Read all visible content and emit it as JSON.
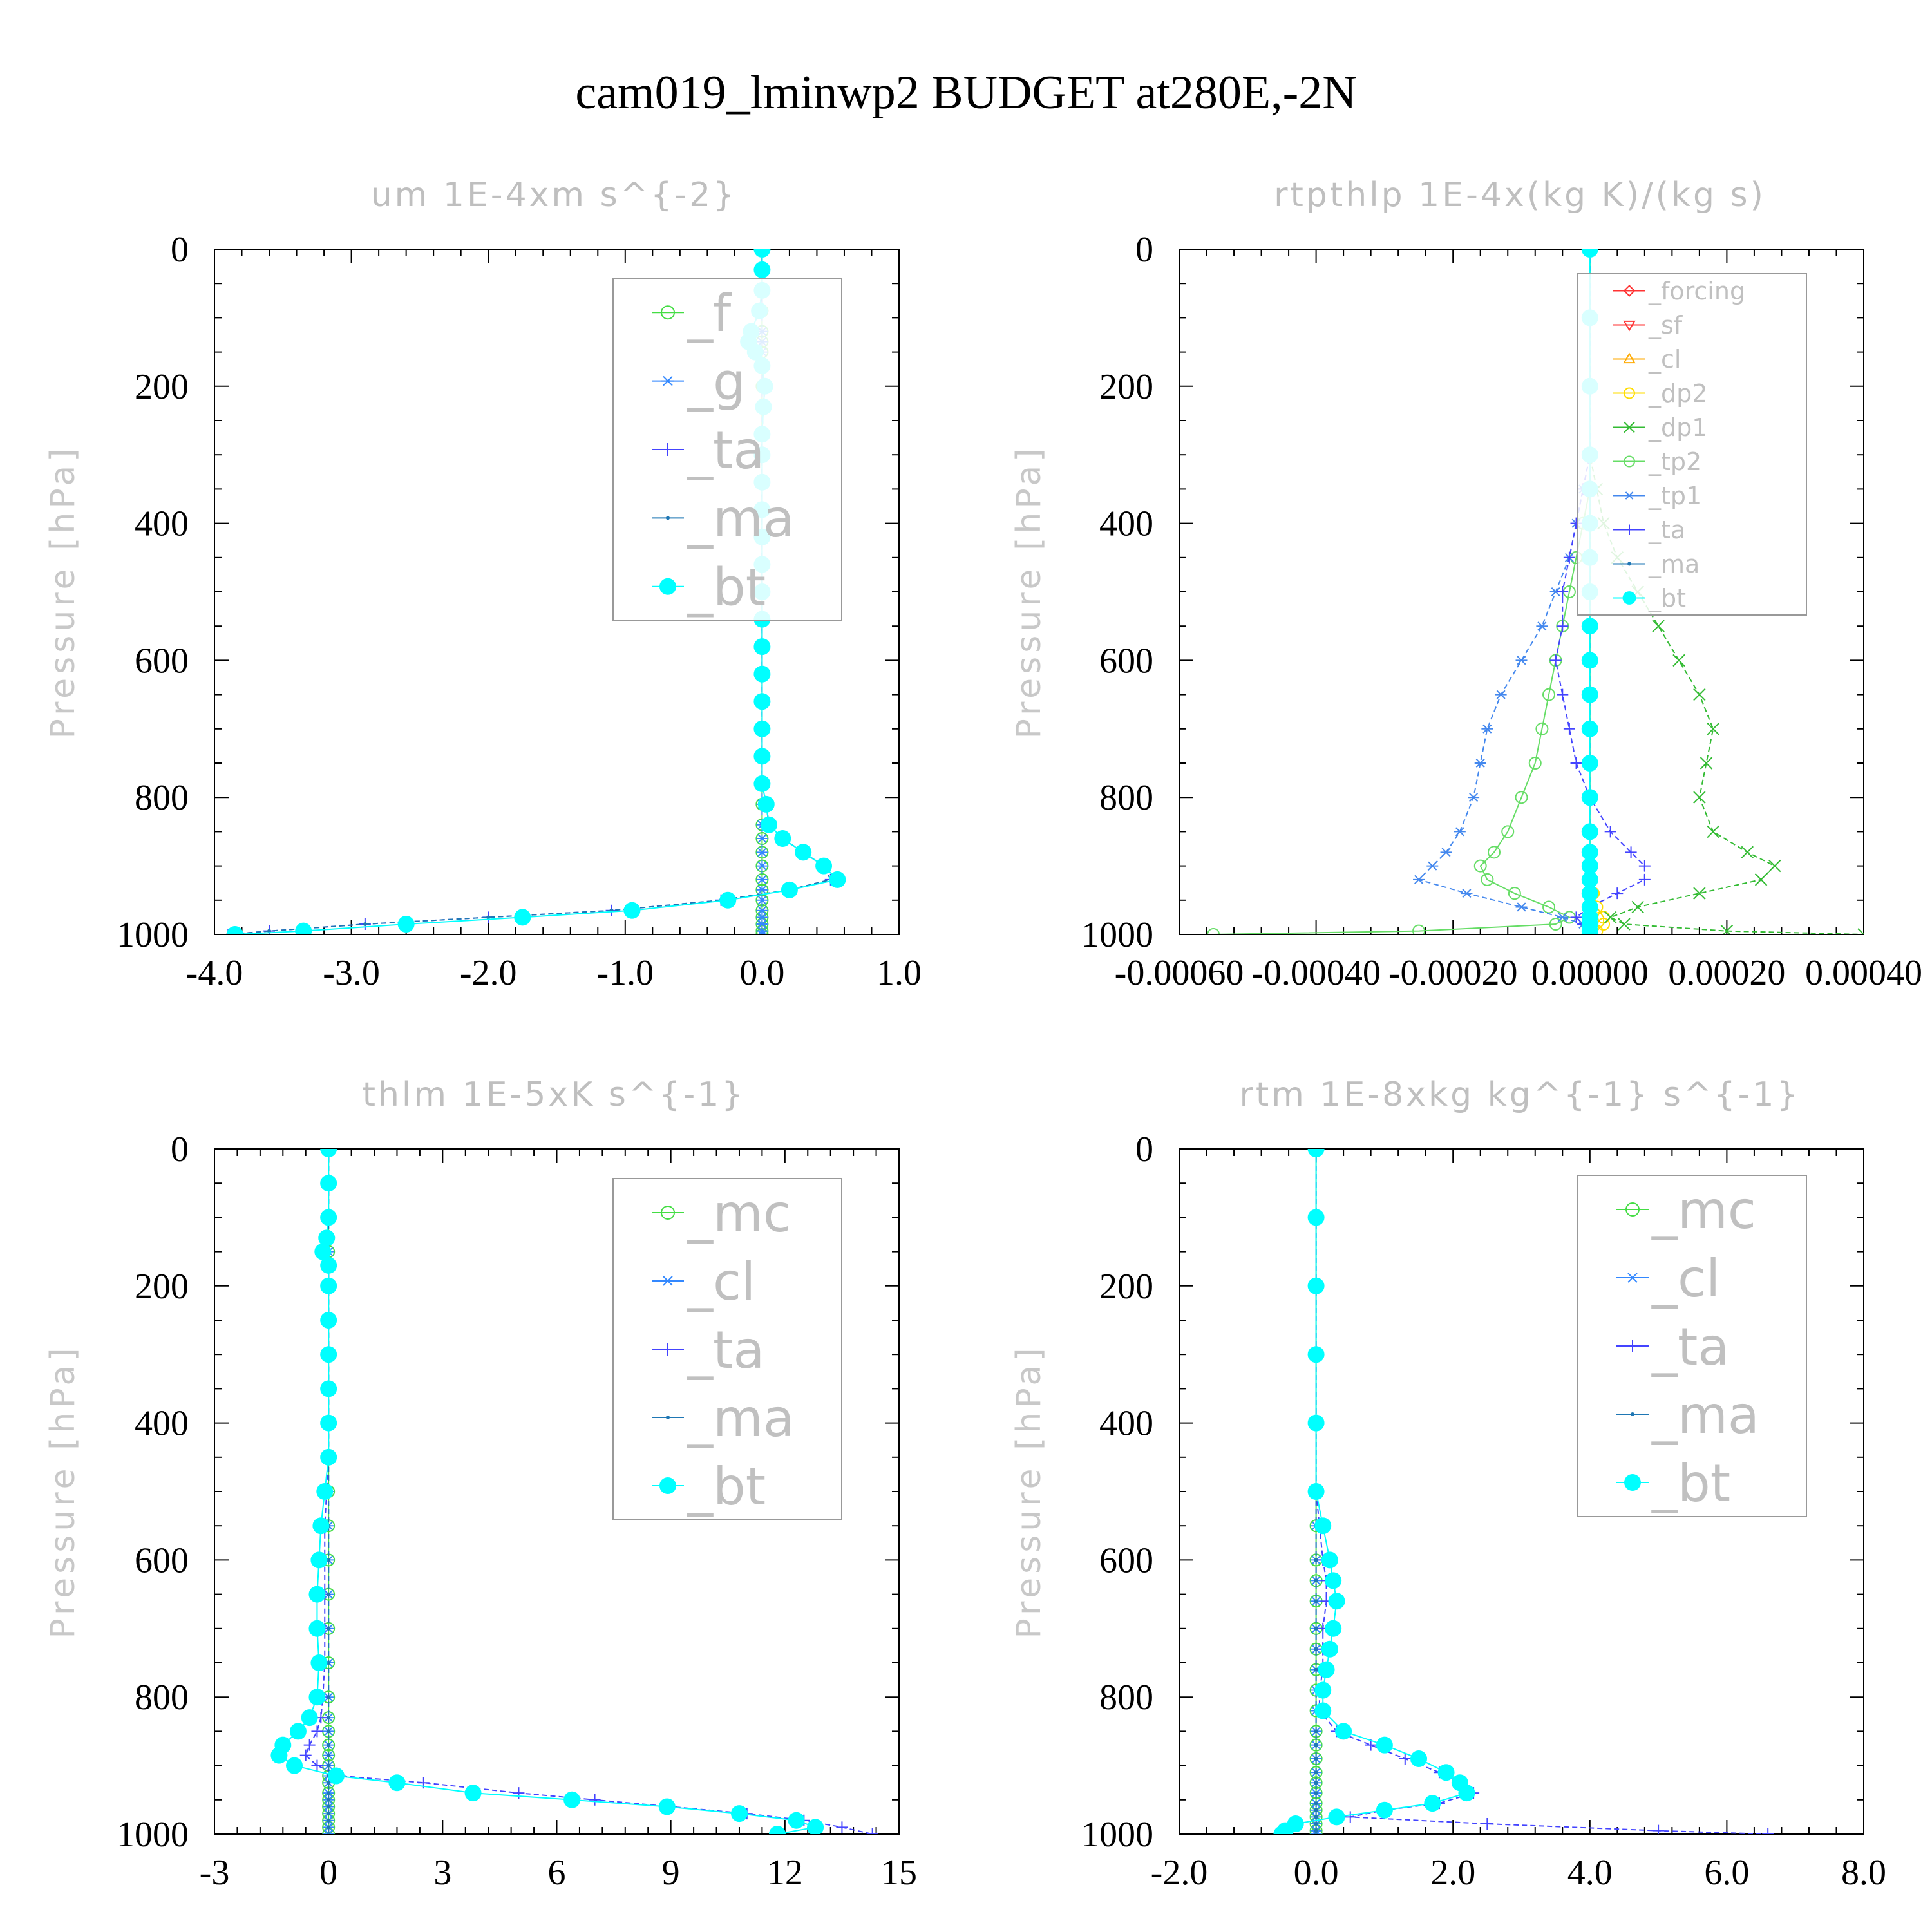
{
  "figure": {
    "title": "cam019_lminwp2  BUDGET at280E,-2N"
  },
  "colors": {
    "f": "#44dd44",
    "g": "#3388ff",
    "ta": "#4444ff",
    "ma": "#1f77b4",
    "bt": "#00ffff",
    "forcing": "#ff3333",
    "sf": "#ff3333",
    "cl_o": "#ffaa00",
    "dp2": "#ffdd00",
    "dp1": "#33bb33",
    "tp2": "#66dd66",
    "tp1": "#4488ee"
  },
  "chart_data": [
    {
      "type": "line",
      "title": "um  1E-4xm s^{-2}",
      "ylabel": "Pressure [hPa]",
      "xlim": [
        -4.0,
        1.0
      ],
      "ylim": [
        1000,
        0
      ],
      "xticks": [
        "-4.0",
        "-3.0",
        "-2.0",
        "-1.0",
        "0.0",
        "1.0"
      ],
      "xtick_values": [
        -4,
        -3,
        -2,
        -1,
        0,
        1
      ],
      "yticks": [
        "0",
        "200",
        "400",
        "600",
        "800",
        "1000"
      ],
      "ytick_values": [
        0,
        200,
        400,
        600,
        800,
        1000
      ],
      "legend_position": "top-right",
      "y": [
        0,
        30,
        60,
        90,
        120,
        135,
        150,
        170,
        200,
        230,
        270,
        300,
        340,
        380,
        420,
        460,
        500,
        540,
        580,
        620,
        660,
        700,
        740,
        780,
        810,
        840,
        860,
        880,
        900,
        920,
        935,
        950,
        965,
        975,
        985,
        995,
        1000
      ],
      "series": [
        {
          "name": "_f",
          "key": "f",
          "marker": "circle",
          "values": [
            0,
            0,
            0,
            0,
            0,
            0,
            0,
            0,
            0,
            0,
            0,
            0,
            0,
            0,
            0,
            0,
            0,
            0,
            0,
            0,
            0,
            0,
            0,
            0,
            0,
            0,
            0,
            0,
            0,
            0,
            0,
            0,
            0,
            0,
            0,
            0,
            0
          ]
        },
        {
          "name": "_g",
          "key": "g",
          "marker": "asterisk",
          "values": [
            0,
            0,
            0,
            0,
            0,
            0,
            0,
            0,
            0,
            0,
            0,
            0,
            0,
            0,
            0,
            0,
            0,
            0,
            0,
            0,
            0,
            0,
            0,
            0,
            0,
            0,
            0,
            0,
            0,
            0,
            0,
            0,
            0,
            0,
            0,
            0,
            0
          ]
        },
        {
          "name": "_ta",
          "key": "ta",
          "marker": "plus",
          "values": [
            0,
            0,
            0,
            -0.02,
            -0.08,
            -0.1,
            -0.05,
            0,
            0.02,
            0.01,
            0,
            0,
            0,
            0,
            0,
            0,
            0,
            0,
            0,
            0,
            0,
            0,
            0,
            0,
            0.03,
            0.05,
            0.15,
            0.3,
            0.45,
            0.5,
            0.2,
            -0.3,
            -1.1,
            -2.0,
            -2.9,
            -3.6,
            -3.9
          ]
        },
        {
          "name": "_ma",
          "key": "ma",
          "marker": "dot",
          "values": [
            0,
            0,
            0,
            -0.02,
            -0.08,
            -0.1,
            -0.05,
            0,
            0.02,
            0.01,
            0,
            0,
            0,
            0,
            0,
            0,
            0,
            0,
            0,
            0,
            0,
            0,
            0,
            0,
            0.03,
            0.05,
            0.15,
            0.3,
            0.45,
            0.5,
            0.2,
            -0.3,
            -1.1,
            -2.0,
            -2.9,
            -3.6,
            -3.9
          ]
        },
        {
          "name": "_bt",
          "key": "bt",
          "marker": "filled",
          "values": [
            0,
            0,
            0,
            -0.02,
            -0.08,
            -0.1,
            -0.05,
            0,
            0.02,
            0.01,
            0,
            0,
            0,
            0,
            0,
            0,
            0,
            0,
            0,
            0,
            0,
            0,
            0,
            0,
            0.03,
            0.05,
            0.15,
            0.3,
            0.45,
            0.55,
            0.2,
            -0.25,
            -0.95,
            -1.75,
            -2.6,
            -3.35,
            -3.85
          ]
        }
      ]
    },
    {
      "type": "line",
      "title": "rtpthlp  1E-4x(kg K)/(kg s)",
      "ylabel": "Pressure [hPa]",
      "xlim": [
        -0.0006,
        0.0004
      ],
      "ylim": [
        1000,
        0
      ],
      "xticks": [
        "-0.00060",
        "-0.00040",
        "-0.00020",
        "0.00000",
        "0.00020",
        "0.00040"
      ],
      "xtick_values": [
        -0.0006,
        -0.0004,
        -0.0002,
        0,
        0.0002,
        0.0004
      ],
      "yticks": [
        "0",
        "200",
        "400",
        "600",
        "800",
        "1000"
      ],
      "ytick_values": [
        0,
        200,
        400,
        600,
        800,
        1000
      ],
      "legend_position": "top-right",
      "y": [
        0,
        100,
        200,
        300,
        350,
        400,
        450,
        500,
        550,
        600,
        650,
        700,
        750,
        800,
        850,
        880,
        900,
        920,
        940,
        960,
        975,
        985,
        995,
        1000
      ],
      "series": [
        {
          "name": "_forcing",
          "key": "forcing",
          "marker": "diamond",
          "values": [
            0,
            0,
            0,
            0,
            0,
            0,
            0,
            0,
            0,
            0,
            0,
            0,
            0,
            0,
            0,
            0,
            0,
            0,
            0,
            0,
            0,
            0,
            0,
            0
          ]
        },
        {
          "name": "_sf",
          "key": "sf",
          "marker": "tri-down",
          "values": [
            0,
            0,
            0,
            0,
            0,
            0,
            0,
            0,
            0,
            0,
            0,
            0,
            0,
            0,
            0,
            0,
            0,
            0,
            0,
            0,
            0,
            0,
            0,
            0
          ]
        },
        {
          "name": "_cl",
          "key": "cl_o",
          "marker": "tri-up",
          "values": [
            0,
            0,
            0,
            0,
            0,
            0,
            0,
            0,
            0,
            0,
            0,
            0,
            0,
            0,
            0,
            0,
            0,
            0,
            0,
            0,
            0,
            0,
            0,
            0
          ]
        },
        {
          "name": "_dp2",
          "key": "dp2",
          "marker": "circle",
          "values": [
            0,
            0,
            0,
            0,
            0,
            0,
            0,
            0,
            0,
            0,
            0,
            0,
            0,
            0,
            0,
            0,
            0,
            0,
            5e-06,
            1e-05,
            2e-05,
            2e-05,
            1e-05,
            0
          ]
        },
        {
          "name": "_dp1",
          "key": "dp1",
          "marker": "cross",
          "values": [
            0,
            0,
            0,
            0,
            1e-05,
            2e-05,
            4e-05,
            7e-05,
            0.0001,
            0.00013,
            0.00016,
            0.00018,
            0.00017,
            0.00016,
            0.00018,
            0.00023,
            0.00027,
            0.00025,
            0.00016,
            7e-05,
            3e-05,
            5e-05,
            0.0002,
            0.0004
          ]
        },
        {
          "name": "_tp2",
          "key": "tp2",
          "marker": "circle",
          "values": [
            0,
            0,
            0,
            0,
            0,
            -1e-05,
            -2e-05,
            -3e-05,
            -4e-05,
            -5e-05,
            -6e-05,
            -7e-05,
            -8e-05,
            -0.0001,
            -0.00012,
            -0.00014,
            -0.00016,
            -0.00015,
            -0.00011,
            -6e-05,
            -3e-05,
            -5e-05,
            -0.00025,
            -0.00055
          ]
        },
        {
          "name": "_tp1",
          "key": "tp1",
          "marker": "asterisk",
          "values": [
            0,
            0,
            0,
            0,
            -1e-05,
            -2e-05,
            -3e-05,
            -5e-05,
            -7e-05,
            -0.0001,
            -0.00013,
            -0.00015,
            -0.00016,
            -0.00017,
            -0.00019,
            -0.00021,
            -0.00023,
            -0.00025,
            -0.00018,
            -0.0001,
            -4e-05,
            -1e-05,
            0,
            0
          ]
        },
        {
          "name": "_ta",
          "key": "ta",
          "marker": "plus",
          "values": [
            0,
            0,
            0,
            0,
            -1e-05,
            -2e-05,
            -3e-05,
            -4e-05,
            -4e-05,
            -5e-05,
            -4e-05,
            -3e-05,
            -2e-05,
            0,
            3e-05,
            6e-05,
            8e-05,
            8e-05,
            4e-05,
            0,
            -2e-05,
            -1e-05,
            0,
            0
          ]
        },
        {
          "name": "_ma",
          "key": "ma",
          "marker": "dot",
          "values": [
            0,
            0,
            0,
            0,
            0,
            0,
            0,
            0,
            0,
            0,
            0,
            0,
            0,
            0,
            0,
            0,
            0,
            0,
            0,
            0,
            0,
            0,
            0,
            0
          ]
        },
        {
          "name": "_bt",
          "key": "bt",
          "marker": "filled",
          "values": [
            0,
            0,
            0,
            0,
            0,
            0,
            0,
            0,
            0,
            0,
            0,
            0,
            0,
            0,
            0,
            0,
            0,
            0,
            0,
            0,
            0,
            0,
            0,
            0
          ]
        }
      ]
    },
    {
      "type": "line",
      "title": "thlm  1E-5xK s^{-1}",
      "ylabel": "Pressure [hPa]",
      "xlim": [
        -3,
        15
      ],
      "ylim": [
        1000,
        0
      ],
      "xticks": [
        "-3",
        "0",
        "3",
        "6",
        "9",
        "12",
        "15"
      ],
      "xtick_values": [
        -3,
        0,
        3,
        6,
        9,
        12,
        15
      ],
      "yticks": [
        "0",
        "200",
        "400",
        "600",
        "800",
        "1000"
      ],
      "ytick_values": [
        0,
        200,
        400,
        600,
        800,
        1000
      ],
      "legend_position": "top-right",
      "y": [
        0,
        50,
        100,
        130,
        150,
        170,
        200,
        250,
        300,
        350,
        400,
        450,
        500,
        550,
        600,
        650,
        700,
        750,
        800,
        830,
        850,
        870,
        885,
        900,
        915,
        925,
        940,
        950,
        960,
        970,
        980,
        990,
        1000
      ],
      "series": [
        {
          "name": "_mc",
          "key": "f",
          "marker": "circle",
          "values": [
            0,
            0,
            0,
            0,
            0,
            0,
            0,
            0,
            0,
            0,
            0,
            0,
            0,
            0,
            0,
            0,
            0,
            0,
            0,
            0,
            0,
            0,
            0,
            0,
            0,
            0,
            0,
            0,
            0,
            0,
            0,
            0,
            0
          ]
        },
        {
          "name": "_cl",
          "key": "g",
          "marker": "asterisk",
          "values": [
            0,
            0,
            0,
            0,
            0,
            0,
            0,
            0,
            0,
            0,
            0,
            0,
            0,
            0,
            0,
            0,
            0,
            0,
            0,
            0,
            0,
            0,
            0,
            0,
            0,
            0,
            0,
            0,
            0,
            0,
            0,
            0,
            0
          ]
        },
        {
          "name": "_ta",
          "key": "ta",
          "marker": "plus",
          "values": [
            0,
            0,
            0,
            -0.05,
            -0.1,
            0,
            0,
            0,
            0,
            0,
            0,
            0,
            -0.05,
            -0.1,
            -0.1,
            -0.1,
            -0.1,
            -0.1,
            -0.15,
            -0.2,
            -0.3,
            -0.5,
            -0.6,
            -0.3,
            0.3,
            2.5,
            5.0,
            7.0,
            9.0,
            11.0,
            12.5,
            13.5,
            14.3
          ]
        },
        {
          "name": "_ma",
          "key": "ma",
          "marker": "dot",
          "values": [
            0,
            0,
            0,
            0,
            0,
            0,
            0,
            0,
            0,
            0,
            0,
            0,
            0,
            0,
            0,
            0,
            0,
            0,
            0,
            0,
            0,
            0,
            0,
            0,
            0,
            0,
            0,
            0,
            0,
            0,
            0,
            0,
            0
          ]
        },
        {
          "name": "_bt",
          "key": "bt",
          "marker": "filled",
          "values": [
            0,
            0,
            0,
            -0.05,
            -0.15,
            0,
            0,
            0,
            0,
            0,
            0,
            0,
            -0.1,
            -0.2,
            -0.25,
            -0.3,
            -0.3,
            -0.25,
            -0.3,
            -0.5,
            -0.8,
            -1.2,
            -1.3,
            -0.9,
            0.2,
            1.8,
            3.8,
            6.4,
            8.9,
            10.8,
            12.3,
            12.8,
            11.8
          ]
        }
      ]
    },
    {
      "type": "line",
      "title": "rtm  1E-8xkg kg^{-1} s^{-1}",
      "ylabel": "Pressure [hPa]",
      "xlim": [
        -2.0,
        8.0
      ],
      "ylim": [
        1000,
        0
      ],
      "xticks": [
        "-2.0",
        "0.0",
        "2.0",
        "4.0",
        "6.0",
        "8.0"
      ],
      "xtick_values": [
        -2,
        0,
        2,
        4,
        6,
        8
      ],
      "yticks": [
        "0",
        "200",
        "400",
        "600",
        "800",
        "1000"
      ],
      "ytick_values": [
        0,
        200,
        400,
        600,
        800,
        1000
      ],
      "legend_position": "top-right",
      "y": [
        0,
        100,
        200,
        300,
        400,
        500,
        550,
        600,
        630,
        660,
        700,
        730,
        760,
        790,
        820,
        850,
        870,
        890,
        910,
        925,
        940,
        955,
        965,
        975,
        985,
        995,
        1000
      ],
      "series": [
        {
          "name": "_mc",
          "key": "f",
          "marker": "circle",
          "values": [
            0,
            0,
            0,
            0,
            0,
            0,
            0,
            0,
            0,
            0,
            0,
            0,
            0,
            0,
            0,
            0,
            0,
            0,
            0,
            0,
            0,
            0,
            0,
            0,
            0,
            0,
            0
          ]
        },
        {
          "name": "_cl",
          "key": "g",
          "marker": "asterisk",
          "values": [
            0,
            0,
            0,
            0,
            0,
            0,
            0,
            0,
            0,
            0,
            0,
            0,
            0,
            0,
            0,
            0,
            0,
            0,
            0,
            0,
            0,
            0,
            0,
            0,
            0,
            0,
            0
          ]
        },
        {
          "name": "_ta",
          "key": "ta",
          "marker": "plus",
          "values": [
            0,
            0,
            0,
            0,
            0,
            0,
            0.05,
            0.1,
            0.15,
            0.15,
            0.1,
            0.1,
            0.1,
            0.05,
            0.05,
            0.3,
            0.8,
            1.3,
            1.8,
            2.1,
            2.3,
            1.8,
            1.0,
            0.5,
            2.5,
            5.0,
            6.6
          ]
        },
        {
          "name": "_ma",
          "key": "ma",
          "marker": "dot",
          "values": [
            0,
            0,
            0,
            0,
            0,
            0,
            0,
            0,
            0,
            0,
            0,
            0,
            0,
            0,
            0,
            0,
            0,
            0,
            0,
            0,
            0,
            0,
            0,
            0,
            0,
            0,
            0
          ]
        },
        {
          "name": "_bt",
          "key": "bt",
          "marker": "filled",
          "values": [
            0,
            0,
            0,
            0,
            0,
            0,
            0.1,
            0.2,
            0.25,
            0.3,
            0.25,
            0.2,
            0.15,
            0.1,
            0.1,
            0.4,
            1.0,
            1.5,
            1.9,
            2.1,
            2.2,
            1.7,
            1.0,
            0.3,
            -0.3,
            -0.45,
            -0.5
          ]
        }
      ]
    }
  ]
}
